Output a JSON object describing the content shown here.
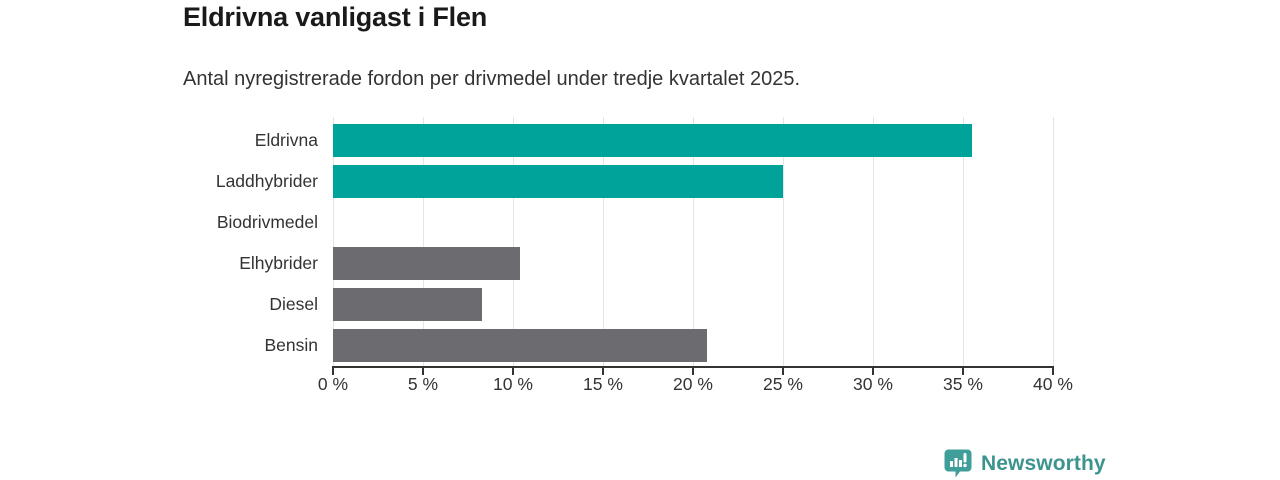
{
  "header": {
    "title": "Eldrivna vanligast i Flen",
    "subtitle": "Antal nyregistrerade fordon per drivmedel under tredje kvartalet 2025."
  },
  "chart_data": {
    "type": "bar",
    "orientation": "horizontal",
    "title": "Eldrivna vanligast i Flen",
    "subtitle": "Antal nyregistrerade fordon per drivmedel under tredje kvartalet 2025.",
    "categories": [
      "Eldrivna",
      "Laddhybrider",
      "Biodrivmedel",
      "Elhybrider",
      "Diesel",
      "Bensin"
    ],
    "values": [
      35.5,
      25.0,
      0,
      10.4,
      8.3,
      20.8
    ],
    "bar_colors": [
      "#00a399",
      "#00a399",
      "#00a399",
      "#6b6b70",
      "#6b6b70",
      "#6b6b70"
    ],
    "highlight_color": "#00a399",
    "default_color": "#6b6b70",
    "xlim": [
      0,
      40
    ],
    "x_ticks": [
      0,
      5,
      10,
      15,
      20,
      25,
      30,
      35,
      40
    ],
    "x_tick_labels": [
      "0 %",
      "5 %",
      "10 %",
      "15 %",
      "20 %",
      "25 %",
      "30 %",
      "35 %",
      "40 %"
    ],
    "grid": true,
    "legend": "none",
    "axis_color": "#333333",
    "gridline_color": "#e4e4e4"
  },
  "branding": {
    "logo_text": "Newsworthy",
    "logo_icon": "newsworthy-bar-chart-bubble-icon",
    "logo_color": "#3d948f"
  }
}
